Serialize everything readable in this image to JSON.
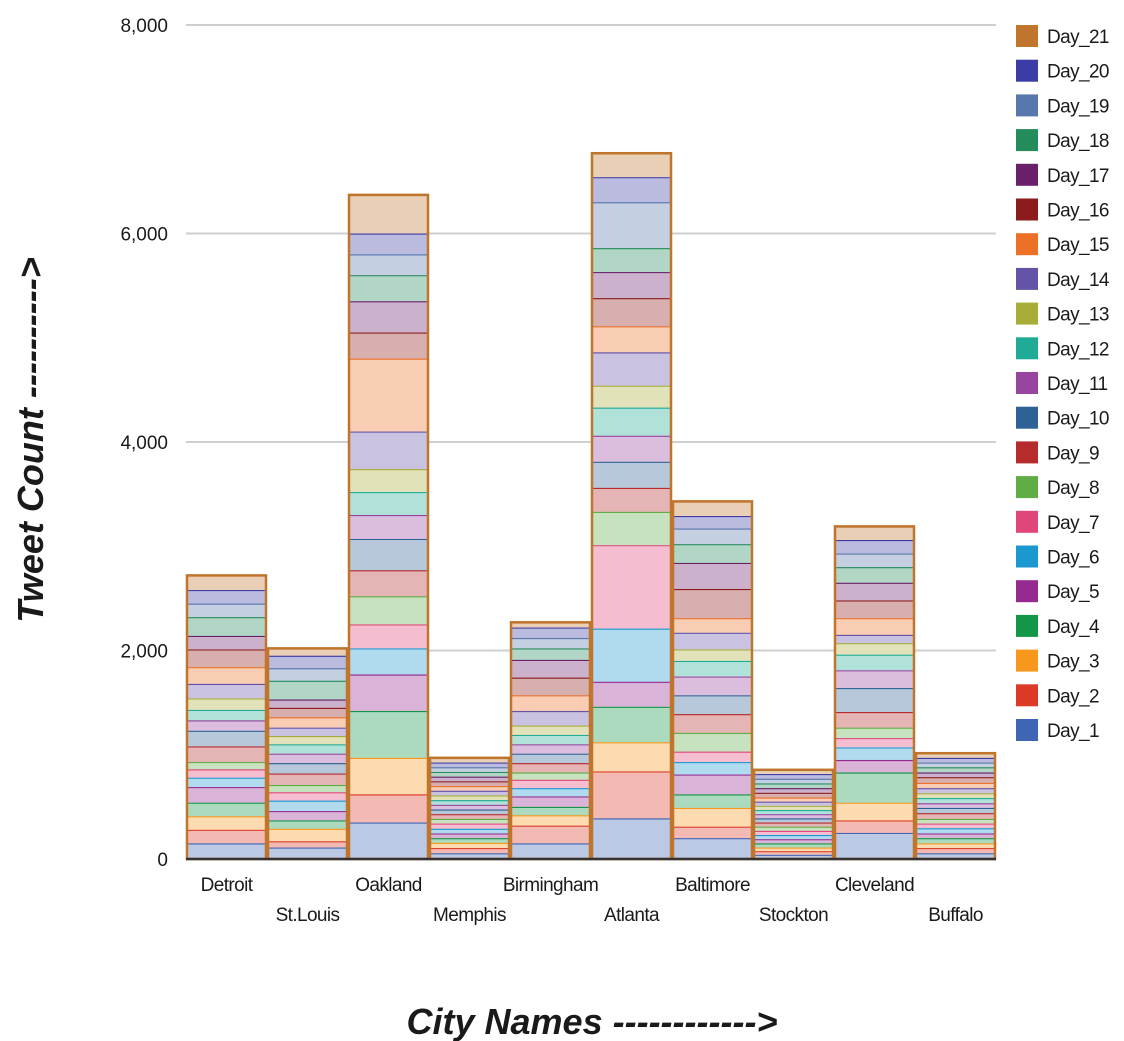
{
  "chart_data": {
    "type": "bar",
    "stacked": true,
    "xlabel": "City Names ------------>",
    "ylabel": "Tweet Count ---------->",
    "ylim": [
      0,
      8000
    ],
    "yticks": [
      0,
      2000,
      4000,
      6000,
      8000
    ],
    "ytick_labels": [
      "0",
      "2,000",
      "4,000",
      "6,000",
      "8,000"
    ],
    "grid": true,
    "legend_position": "right",
    "categories": [
      "Detroit",
      "St.Louis",
      "Oakland",
      "Memphis",
      "Birmingham",
      "Atlanta",
      "Baltimore",
      "Stockton",
      "Cleveland",
      "Buffalo"
    ],
    "series": [
      {
        "name": "Day_1",
        "color": "#3f66b5",
        "values": [
          150,
          110,
          350,
          55,
          150,
          390,
          200,
          40,
          250,
          55
        ]
      },
      {
        "name": "Day_2",
        "color": "#dc3a26",
        "values": [
          130,
          60,
          270,
          50,
          170,
          450,
          110,
          35,
          120,
          50
        ]
      },
      {
        "name": "Day_3",
        "color": "#f7981d",
        "values": [
          130,
          120,
          350,
          50,
          100,
          280,
          180,
          35,
          170,
          45
        ]
      },
      {
        "name": "Day_4",
        "color": "#139647",
        "values": [
          130,
          80,
          450,
          45,
          80,
          340,
          130,
          40,
          290,
          50
        ]
      },
      {
        "name": "Day_5",
        "color": "#952a90",
        "values": [
          150,
          90,
          350,
          45,
          100,
          240,
          190,
          40,
          120,
          45
        ]
      },
      {
        "name": "Day_6",
        "color": "#1c98d1",
        "values": [
          90,
          100,
          250,
          45,
          80,
          510,
          120,
          40,
          120,
          50
        ]
      },
      {
        "name": "Day_7",
        "color": "#e0467a",
        "values": [
          80,
          80,
          230,
          50,
          80,
          800,
          100,
          40,
          90,
          45
        ]
      },
      {
        "name": "Day_8",
        "color": "#60ad45",
        "values": [
          70,
          70,
          270,
          45,
          70,
          320,
          180,
          40,
          100,
          45
        ]
      },
      {
        "name": "Day_9",
        "color": "#b62b2c",
        "values": [
          150,
          110,
          250,
          45,
          90,
          230,
          180,
          40,
          150,
          55
        ]
      },
      {
        "name": "Day_10",
        "color": "#2e6196",
        "values": [
          150,
          100,
          300,
          45,
          90,
          250,
          180,
          40,
          230,
          50
        ]
      },
      {
        "name": "Day_11",
        "color": "#9845a0",
        "values": [
          100,
          90,
          230,
          45,
          90,
          250,
          180,
          40,
          170,
          45
        ]
      },
      {
        "name": "Day_12",
        "color": "#1fab96",
        "values": [
          100,
          90,
          220,
          45,
          90,
          270,
          150,
          40,
          150,
          50
        ]
      },
      {
        "name": "Day_13",
        "color": "#a8ad37",
        "values": [
          110,
          80,
          220,
          45,
          90,
          210,
          110,
          40,
          110,
          45
        ]
      },
      {
        "name": "Day_14",
        "color": "#6553a8",
        "values": [
          140,
          80,
          360,
          45,
          140,
          320,
          160,
          40,
          80,
          50
        ]
      },
      {
        "name": "Day_15",
        "color": "#ec7026",
        "values": [
          160,
          100,
          700,
          45,
          150,
          250,
          140,
          40,
          160,
          50
        ]
      },
      {
        "name": "Day_16",
        "color": "#8c1b1b",
        "values": [
          170,
          90,
          250,
          45,
          170,
          270,
          280,
          45,
          170,
          55
        ]
      },
      {
        "name": "Day_17",
        "color": "#6a1f6b",
        "values": [
          130,
          80,
          300,
          45,
          170,
          250,
          250,
          45,
          170,
          45
        ]
      },
      {
        "name": "Day_18",
        "color": "#248b5a",
        "values": [
          180,
          180,
          250,
          45,
          110,
          230,
          180,
          45,
          150,
          50
        ]
      },
      {
        "name": "Day_19",
        "color": "#5877ad",
        "values": [
          130,
          120,
          200,
          45,
          100,
          440,
          150,
          45,
          130,
          45
        ]
      },
      {
        "name": "Day_20",
        "color": "#3c3ca6",
        "values": [
          130,
          120,
          200,
          45,
          100,
          240,
          120,
          45,
          130,
          45
        ]
      },
      {
        "name": "Day_21",
        "color": "#c0752d",
        "values": [
          140,
          70,
          370,
          45,
          50,
          230,
          140,
          40,
          130,
          45
        ]
      }
    ]
  }
}
